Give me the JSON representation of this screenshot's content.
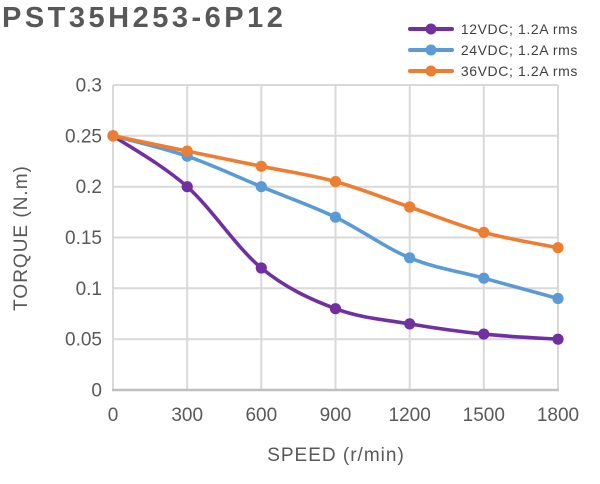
{
  "chart_data": {
    "type": "line",
    "title": "PST35H253-6P12",
    "xlabel": "SPEED (r/min)",
    "ylabel": "TORQUE (N.m)",
    "x": [
      0,
      300,
      600,
      900,
      1200,
      1500,
      1800
    ],
    "xlim": [
      0,
      1800
    ],
    "ylim": [
      0,
      0.3
    ],
    "xticks": [
      0,
      300,
      600,
      900,
      1200,
      1500,
      1800
    ],
    "xtick_labels": [
      "0",
      "300",
      "600",
      "900",
      "1200",
      "1500",
      "1800"
    ],
    "ytick_values": [
      0,
      0.05,
      0.1,
      0.15,
      0.2,
      0.25,
      0.3
    ],
    "ytick_labels": [
      "0",
      "0.05",
      "0.1",
      "0.15",
      "0.2",
      "0.25",
      "0.3"
    ],
    "grid": true,
    "legend_position": "top-right",
    "series": [
      {
        "name": "12VDC; 1.2A rms",
        "color": "#7030A0",
        "values": [
          0.25,
          0.2,
          0.12,
          0.08,
          0.065,
          0.055,
          0.05
        ]
      },
      {
        "name": "24VDC; 1.2A rms",
        "color": "#5B9BD5",
        "values": [
          0.25,
          0.23,
          0.2,
          0.17,
          0.13,
          0.11,
          0.09
        ]
      },
      {
        "name": "36VDC; 1.2A rms",
        "color": "#ED7D31",
        "values": [
          0.25,
          0.235,
          0.22,
          0.205,
          0.18,
          0.155,
          0.14
        ]
      }
    ],
    "colors": {
      "grid": "#D9D9D9",
      "axis_line": "#BFBFBF",
      "tick_text": "#595959",
      "title_text": "#58585A",
      "legend_text": "#3F3F3F"
    }
  }
}
